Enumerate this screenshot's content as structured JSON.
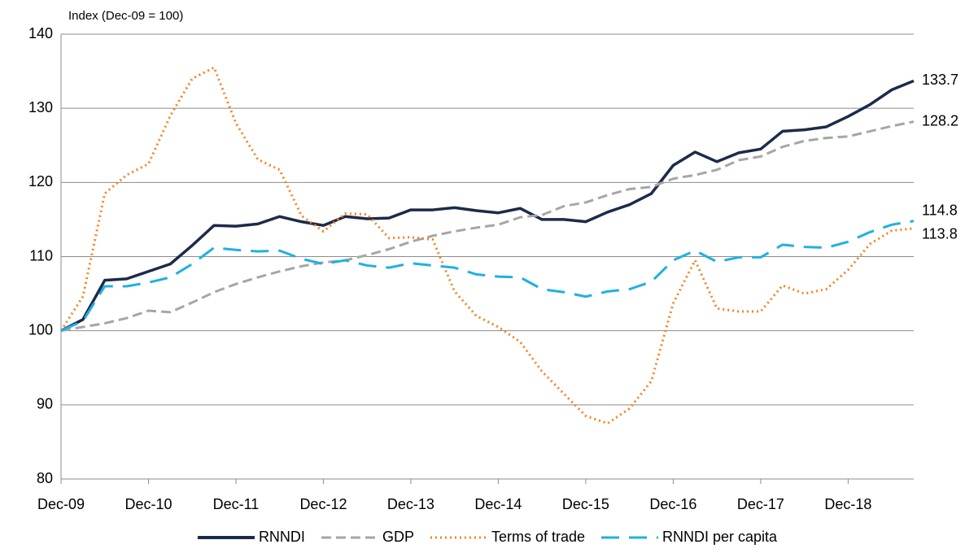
{
  "chart_data": {
    "type": "line",
    "y_axis_title": "Index (Dec-09 = 100)",
    "categories": [
      "Dec-09",
      null,
      null,
      null,
      "Dec-10",
      null,
      null,
      null,
      "Dec-11",
      null,
      null,
      null,
      "Dec-12",
      null,
      null,
      null,
      "Dec-13",
      null,
      null,
      null,
      "Dec-14",
      null,
      null,
      null,
      "Dec-15",
      null,
      null,
      null,
      "Dec-16",
      null,
      null,
      null,
      "Dec-17",
      null,
      null,
      null,
      "Dec-18",
      null,
      null,
      null
    ],
    "ylim": [
      80,
      140
    ],
    "yticks": [
      80,
      90,
      100,
      110,
      120,
      130,
      140
    ],
    "grid": true,
    "legend": "bottom",
    "series": [
      {
        "name": "RNNDI",
        "color": "#1c2b4a",
        "style": "solid",
        "values": [
          100,
          101.5,
          106.8,
          107,
          108,
          109,
          111.5,
          114.2,
          114.1,
          114.4,
          115.4,
          114.7,
          114.2,
          115.4,
          115.1,
          115.2,
          116.3,
          116.3,
          116.6,
          116.2,
          115.9,
          116.5,
          115,
          115,
          114.7,
          116,
          117,
          118.5,
          122.3,
          124.1,
          122.8,
          124,
          124.5,
          126.9,
          127.1,
          127.5,
          128.9,
          130.5,
          132.5,
          133.7
        ]
      },
      {
        "name": "GDP",
        "color": "#a6a6a6",
        "style": "dashed",
        "values": [
          100,
          100.5,
          101,
          101.7,
          102.7,
          102.5,
          103.8,
          105.2,
          106.3,
          107.2,
          108,
          108.7,
          109.2,
          109.5,
          110.2,
          111,
          112,
          112.8,
          113.4,
          113.9,
          114.3,
          115.3,
          115.6,
          116.8,
          117.3,
          118.3,
          119.1,
          119.4,
          120.5,
          121,
          121.7,
          123,
          123.5,
          124.8,
          125.6,
          126,
          126.2,
          126.9,
          127.6,
          128.2
        ]
      },
      {
        "name": "Terms of trade",
        "color": "#f58220",
        "style": "dotted",
        "values": [
          100,
          104.6,
          118.5,
          121,
          122.5,
          129,
          134,
          135.5,
          128,
          123.1,
          121.7,
          115.5,
          113.4,
          115.8,
          115.7,
          112.5,
          112.6,
          112.3,
          105.3,
          102,
          100.5,
          98.5,
          94.5,
          91.5,
          88.5,
          87.5,
          89.5,
          93.2,
          103.7,
          109.5,
          103,
          102.6,
          102.6,
          106.1,
          105,
          105.6,
          108.2,
          111.7,
          113.5,
          113.8
        ]
      },
      {
        "name": "RNNDI per capita",
        "color": "#1fb1e0",
        "style": "longdash",
        "values": [
          100,
          101.3,
          106,
          106,
          106.5,
          107.2,
          109,
          111.2,
          110.9,
          110.7,
          110.8,
          109.7,
          109,
          109.5,
          108.8,
          108.5,
          109.1,
          108.8,
          108.5,
          107.6,
          107.3,
          107.2,
          105.6,
          105.2,
          104.6,
          105.3,
          105.6,
          106.6,
          109.5,
          110.8,
          109.3,
          109.9,
          109.9,
          111.6,
          111.3,
          111.2,
          112,
          113.3,
          114.3,
          114.8
        ]
      }
    ]
  }
}
